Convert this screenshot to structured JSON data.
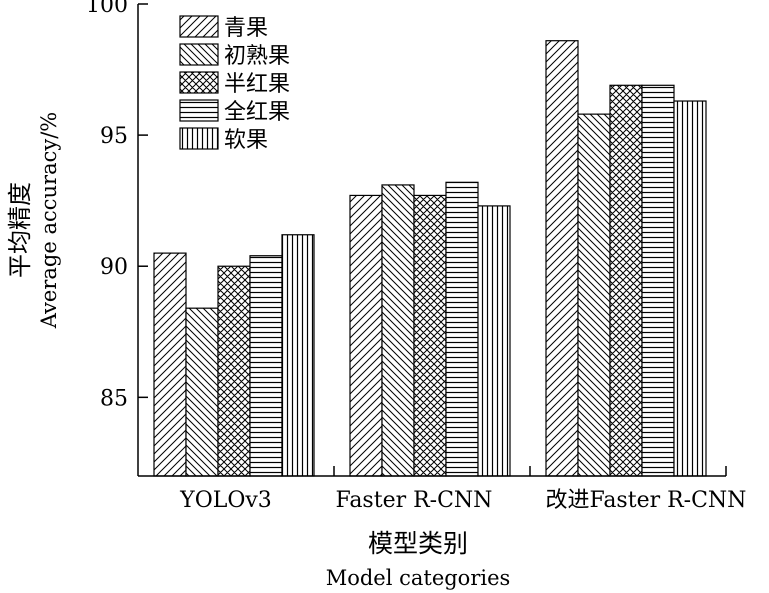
{
  "chart_data": {
    "type": "bar",
    "categories": [
      "YOLOv3",
      "Faster R-CNN",
      "改进Faster R-CNN"
    ],
    "series": [
      {
        "name": "青果",
        "values": [
          90.5,
          92.7,
          98.6
        ]
      },
      {
        "name": "初熟果",
        "values": [
          88.4,
          93.1,
          95.8
        ]
      },
      {
        "name": "半红果",
        "values": [
          90.0,
          92.7,
          96.9
        ]
      },
      {
        "name": "全红果",
        "values": [
          90.4,
          93.2,
          96.9
        ]
      },
      {
        "name": "软果",
        "values": [
          91.2,
          92.3,
          96.3
        ]
      }
    ],
    "ylim": [
      82,
      100
    ],
    "yticks": [
      85,
      90,
      95,
      100
    ],
    "ylabel_cn": "平均精度",
    "ylabel_en": "Average accuracy/%",
    "xlabel_cn": "模型类别",
    "xlabel_en": "Model categories",
    "legend_position": "top-left",
    "grid": false,
    "patterns": [
      "diag-up",
      "diag-down",
      "crosshatch",
      "horizontal",
      "vertical"
    ]
  }
}
